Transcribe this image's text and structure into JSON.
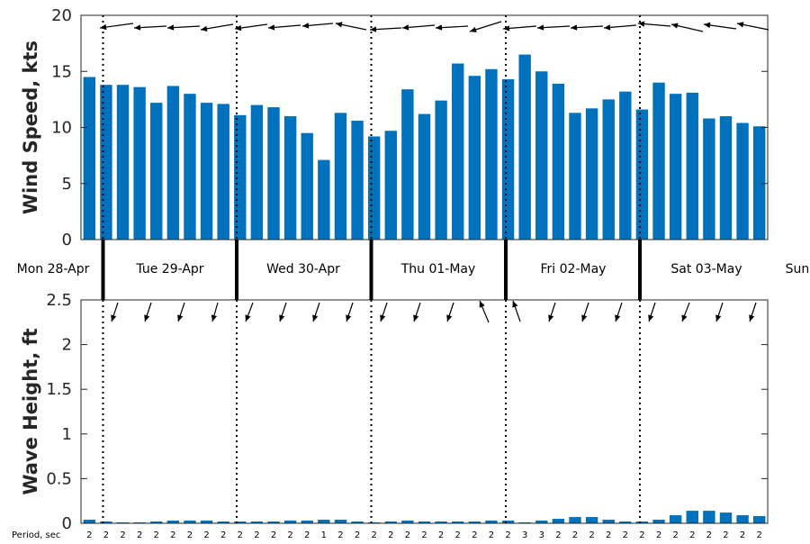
{
  "chart_data": [
    {
      "type": "bar",
      "ylabel": "Wind Speed, kts",
      "ylim": [
        0,
        20
      ],
      "yticks": [
        0,
        5,
        10,
        15,
        20
      ],
      "bar_color": "#0072BD",
      "values": [
        14.5,
        13.8,
        13.8,
        13.6,
        12.2,
        13.7,
        13.0,
        12.2,
        12.1,
        11.1,
        12.0,
        11.8,
        11.0,
        9.5,
        7.1,
        11.3,
        10.6,
        9.2,
        9.7,
        13.4,
        11.2,
        12.4,
        15.7,
        14.6,
        15.2,
        14.3,
        16.5,
        15.0,
        13.9,
        11.3,
        11.7,
        12.5,
        13.2,
        11.6,
        14.0,
        13.0,
        13.1,
        10.8,
        11.0,
        10.4,
        10.1
      ],
      "direction_arrows": "wind-direction-arrows"
    },
    {
      "type": "bar",
      "ylabel": "Wave Height, ft",
      "ylim": [
        0,
        2.5
      ],
      "yticks": [
        "0",
        "0.5",
        "1",
        "1.5",
        "2",
        "2.5"
      ],
      "bar_color": "#0072BD",
      "values": [
        0.04,
        0.02,
        0.01,
        0.01,
        0.02,
        0.03,
        0.03,
        0.03,
        0.02,
        0.02,
        0.02,
        0.02,
        0.03,
        0.03,
        0.04,
        0.04,
        0.02,
        0.01,
        0.02,
        0.03,
        0.02,
        0.02,
        0.02,
        0.02,
        0.03,
        0.03,
        0.01,
        0.03,
        0.05,
        0.07,
        0.07,
        0.04,
        0.02,
        0.02,
        0.04,
        0.09,
        0.14,
        0.14,
        0.12,
        0.09,
        0.08
      ],
      "period_label": "Period, sec",
      "periods": [
        "2",
        "2",
        "2",
        "2",
        "2",
        "2",
        "2",
        "2",
        "2",
        "2",
        "2",
        "2",
        "2",
        "2",
        "1",
        "2",
        "2",
        "2",
        "2",
        "2",
        "2",
        "2",
        "2",
        "2",
        "2",
        "2",
        "3",
        "3",
        "2",
        "2",
        "2",
        "2",
        "2",
        "2",
        "2",
        "2",
        "2",
        "2",
        "2",
        "2",
        "2"
      ],
      "direction_arrows": "wave-direction-arrows"
    }
  ],
  "days": [
    "Mon 28-Apr",
    "Tue 29-Apr",
    "Wed 30-Apr",
    "Thu 01-May",
    "Fri 02-May",
    "Sat 03-May",
    "Sun"
  ]
}
